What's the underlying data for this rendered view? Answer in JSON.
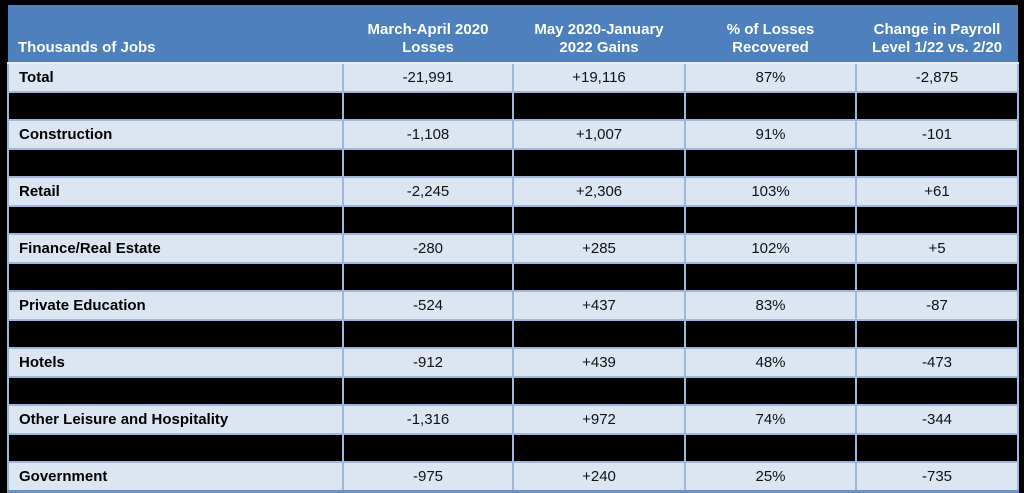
{
  "colors": {
    "page_background": "#000000",
    "header_background": "#4d80bd",
    "header_text": "#ffffff",
    "row_background": "#dce6f2",
    "row_text": "#000000",
    "cell_border": "#9fb8da",
    "header_underline": "#e9eef6",
    "bottom_border": "#6e93c3",
    "redacted_row": "#000000"
  },
  "chart_data": {
    "type": "table",
    "title": "",
    "unit_note": "Thousands of Jobs",
    "columns": [
      "Thousands of Jobs",
      "March-April 2020 Losses",
      "May 2020-January 2022 Gains",
      "% of Losses Recovered",
      "Change in Payroll Level 1/22 vs. 2/20"
    ],
    "rows": [
      {
        "sector": "Total",
        "losses": "-21,991",
        "gains": "+19,116",
        "recovered": "87%",
        "change": "-2,875"
      },
      {
        "redacted": true
      },
      {
        "sector": "Construction",
        "losses": "-1,108",
        "gains": "+1,007",
        "recovered": "91%",
        "change": "-101"
      },
      {
        "redacted": true
      },
      {
        "sector": "Retail",
        "losses": "-2,245",
        "gains": "+2,306",
        "recovered": "103%",
        "change": "+61"
      },
      {
        "redacted": true
      },
      {
        "sector": "Finance/Real Estate",
        "losses": "-280",
        "gains": "+285",
        "recovered": "102%",
        "change": "+5"
      },
      {
        "redacted": true
      },
      {
        "sector": "Private Education",
        "losses": "-524",
        "gains": "+437",
        "recovered": "83%",
        "change": "-87"
      },
      {
        "redacted": true
      },
      {
        "sector": "Hotels",
        "losses": "-912",
        "gains": "+439",
        "recovered": "48%",
        "change": "-473"
      },
      {
        "redacted": true
      },
      {
        "sector": "Other Leisure and Hospitality",
        "losses": "-1,316",
        "gains": "+972",
        "recovered": "74%",
        "change": "-344"
      },
      {
        "redacted": true
      },
      {
        "sector": "Government",
        "losses": "-975",
        "gains": "+240",
        "recovered": "25%",
        "change": "-735"
      }
    ]
  }
}
